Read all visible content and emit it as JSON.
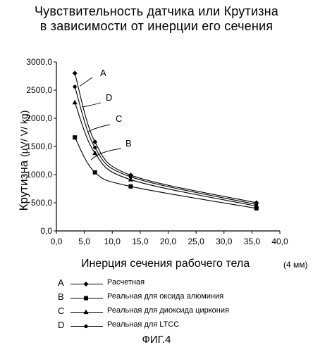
{
  "chart_data": {
    "type": "line",
    "title": "Чувствительность датчика или Крутизна",
    "subtitle": "в зависимости от инерции его сечения",
    "xlabel": "Инерция сечения рабочего тела",
    "xlabel_unit": "(4 мм)",
    "ylabel": "Крутизна",
    "ylabel_unit": "(µV/ V/ kg)",
    "xlim": [
      0,
      40
    ],
    "ylim": [
      0,
      3000
    ],
    "x_ticks": [
      "0,0",
      "5,0",
      "10,0",
      "15,0",
      "20,0",
      "25,0",
      "30,0",
      "35,0",
      "40,0"
    ],
    "y_ticks": [
      "0,0",
      "500,0",
      "1000,0",
      "1500,0",
      "2000,0",
      "2500,0",
      "3000,0"
    ],
    "x_tick_values": [
      0,
      5,
      10,
      15,
      20,
      25,
      30,
      35,
      40
    ],
    "y_tick_values": [
      0,
      500,
      1000,
      1500,
      2000,
      2500,
      3000
    ],
    "grid": false,
    "legend_position": "bottom",
    "series": [
      {
        "letter": "A",
        "name": "Расчетная",
        "marker": "diamond",
        "x": [
          3.3,
          6.9,
          13.3,
          35.8
        ],
        "y": [
          2800,
          1580,
          990,
          500
        ]
      },
      {
        "letter": "B",
        "name": "Реальная для оксида алюминия",
        "marker": "square",
        "x": [
          3.3,
          6.9,
          13.3,
          35.8
        ],
        "y": [
          1660,
          1040,
          790,
          400
        ]
      },
      {
        "letter": "C",
        "name": "Реальная для диоксида циркония",
        "marker": "triangle",
        "x": [
          3.3,
          6.9,
          13.3,
          35.8
        ],
        "y": [
          2280,
          1380,
          910,
          440
        ]
      },
      {
        "letter": "D",
        "name": "Реальная для LTCC",
        "marker": "circle",
        "x": [
          3.3,
          6.9,
          13.3,
          35.8
        ],
        "y": [
          2560,
          1480,
          960,
          470
        ]
      }
    ]
  },
  "caption": "ФИГ.4"
}
